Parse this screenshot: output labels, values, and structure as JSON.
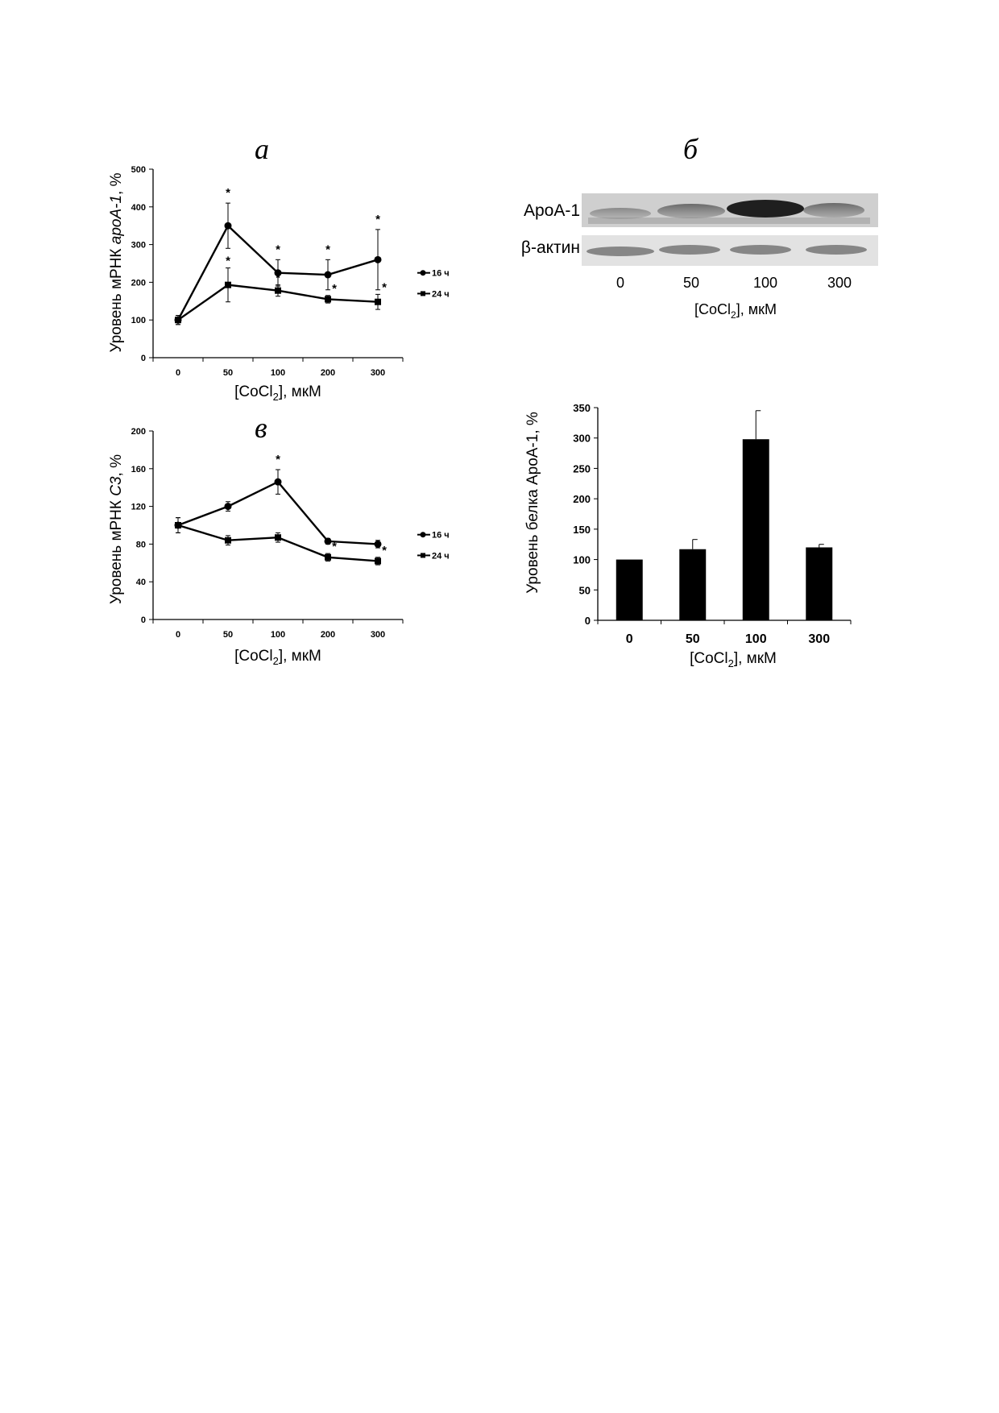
{
  "figure": {
    "panel_a_label": "а",
    "panel_b_label": "б",
    "panel_c_label": "в"
  },
  "blot": {
    "row_labels": [
      "ApoA-1",
      "β-актин"
    ],
    "lanes": [
      "0",
      "50",
      "100",
      "300"
    ],
    "xlabel_prefix": "[CoCl",
    "xlabel_sub": "2",
    "xlabel_suffix": "], мкМ"
  },
  "chart_data": [
    {
      "id": "a",
      "type": "line",
      "categories": [
        "0",
        "50",
        "100",
        "200",
        "300"
      ],
      "series": [
        {
          "name": "16 ч",
          "marker": "diamond",
          "values": [
            100,
            350,
            225,
            220,
            260
          ],
          "errors": [
            12,
            60,
            35,
            40,
            80
          ],
          "significant": [
            false,
            true,
            true,
            true,
            true
          ]
        },
        {
          "name": "24 ч",
          "marker": "square",
          "values": [
            100,
            193,
            178,
            155,
            148
          ],
          "errors": [
            12,
            45,
            15,
            10,
            20
          ],
          "significant": [
            false,
            true,
            true,
            true,
            true
          ]
        }
      ],
      "ylabel_prefix": "Уровень мРНК ",
      "ylabel_italic": "apoA-1",
      "ylabel_suffix": ", %",
      "xlabel_prefix": "[CoCl",
      "xlabel_sub": "2",
      "xlabel_suffix": "], мкМ",
      "ylim": [
        0,
        500
      ],
      "yticks": [
        "0",
        "100",
        "200",
        "300",
        "400",
        "500"
      ],
      "legend": "right",
      "grid": false
    },
    {
      "id": "c",
      "type": "line",
      "categories": [
        "0",
        "50",
        "100",
        "200",
        "300"
      ],
      "series": [
        {
          "name": "16 ч",
          "marker": "diamond",
          "values": [
            100,
            120,
            146,
            83,
            80
          ],
          "errors": [
            8,
            5,
            13,
            3,
            4
          ],
          "significant": [
            false,
            false,
            true,
            false,
            false
          ]
        },
        {
          "name": "24 ч",
          "marker": "square",
          "values": [
            100,
            84,
            87,
            66,
            62
          ],
          "errors": [
            8,
            5,
            5,
            4,
            4
          ],
          "significant": [
            false,
            false,
            false,
            true,
            true
          ]
        }
      ],
      "ylabel_prefix": "Уровень мРНК ",
      "ylabel_italic": "C3",
      "ylabel_suffix": ", %",
      "xlabel_prefix": "[CoCl",
      "xlabel_sub": "2",
      "xlabel_suffix": "], мкМ",
      "ylim": [
        0,
        200
      ],
      "yticks": [
        "0",
        "40",
        "80",
        "120",
        "160",
        "200"
      ],
      "legend": "right",
      "grid": false
    },
    {
      "id": "b",
      "type": "bar",
      "categories": [
        "0",
        "50",
        "100",
        "300"
      ],
      "values": [
        100,
        117,
        298,
        120
      ],
      "errors": [
        0,
        16,
        47,
        5
      ],
      "ylabel": "Уровень белка ApoA-1, %",
      "xlabel_prefix": "[CoCl",
      "xlabel_sub": "2",
      "xlabel_suffix": "], мкМ",
      "ylim": [
        0,
        350
      ],
      "yticks": [
        "0",
        "50",
        "100",
        "150",
        "200",
        "250",
        "300",
        "350"
      ],
      "bar_color": "#000000",
      "grid": false
    }
  ]
}
